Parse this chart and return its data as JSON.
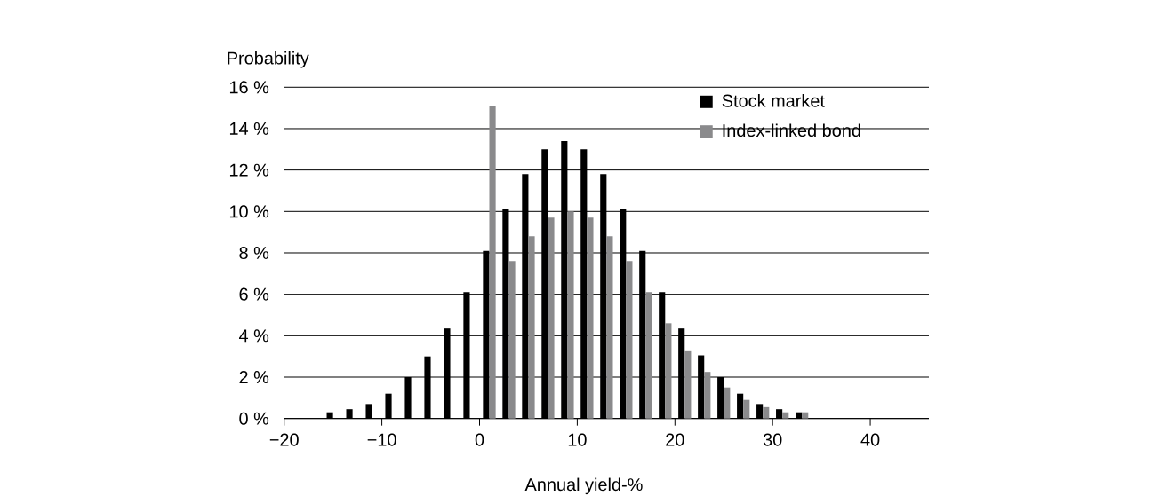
{
  "chart_data": {
    "type": "bar",
    "xlabel": "Annual yield-%",
    "ylabel": "Probability",
    "x": [
      -15,
      -13,
      -11,
      -9,
      -7,
      -5,
      -3,
      -1,
      1,
      3,
      5,
      7,
      9,
      11,
      13,
      15,
      17,
      19,
      21,
      23,
      25,
      27,
      29,
      31,
      33
    ],
    "series": [
      {
        "name": "Stock market",
        "color": "#000000",
        "values": [
          0.3,
          0.45,
          0.7,
          1.2,
          2.0,
          3.0,
          4.35,
          6.1,
          8.1,
          10.1,
          11.8,
          13.0,
          13.4,
          13.0,
          11.8,
          10.1,
          8.1,
          6.1,
          4.35,
          3.05,
          2.0,
          1.2,
          0.7,
          0.45,
          0.3
        ]
      },
      {
        "name": "Index-linked bond",
        "color": "#8a8a8c",
        "values": [
          null,
          null,
          null,
          null,
          null,
          null,
          null,
          null,
          15.1,
          7.6,
          8.8,
          9.7,
          10.0,
          9.7,
          8.8,
          7.6,
          6.1,
          4.6,
          3.25,
          2.25,
          1.5,
          0.9,
          0.55,
          0.3,
          0.3
        ]
      }
    ],
    "xlim": [
      -20,
      46
    ],
    "ylim": [
      0,
      16
    ],
    "xticks": [
      {
        "value": -20,
        "label": "−20"
      },
      {
        "value": -10,
        "label": "−10"
      },
      0,
      10,
      20,
      30,
      40
    ],
    "yticks": [
      {
        "value": 0,
        "label": "0 %"
      },
      {
        "value": 2,
        "label": "2 %"
      },
      {
        "value": 4,
        "label": "4 %"
      },
      {
        "value": 6,
        "label": "6 %"
      },
      {
        "value": 8,
        "label": "8 %"
      },
      {
        "value": 10,
        "label": "10 %"
      },
      {
        "value": 12,
        "label": "12 %"
      },
      {
        "value": 14,
        "label": "14 %"
      },
      {
        "value": 16,
        "label": "16 %"
      }
    ],
    "grid": "y",
    "legend": "top right"
  }
}
